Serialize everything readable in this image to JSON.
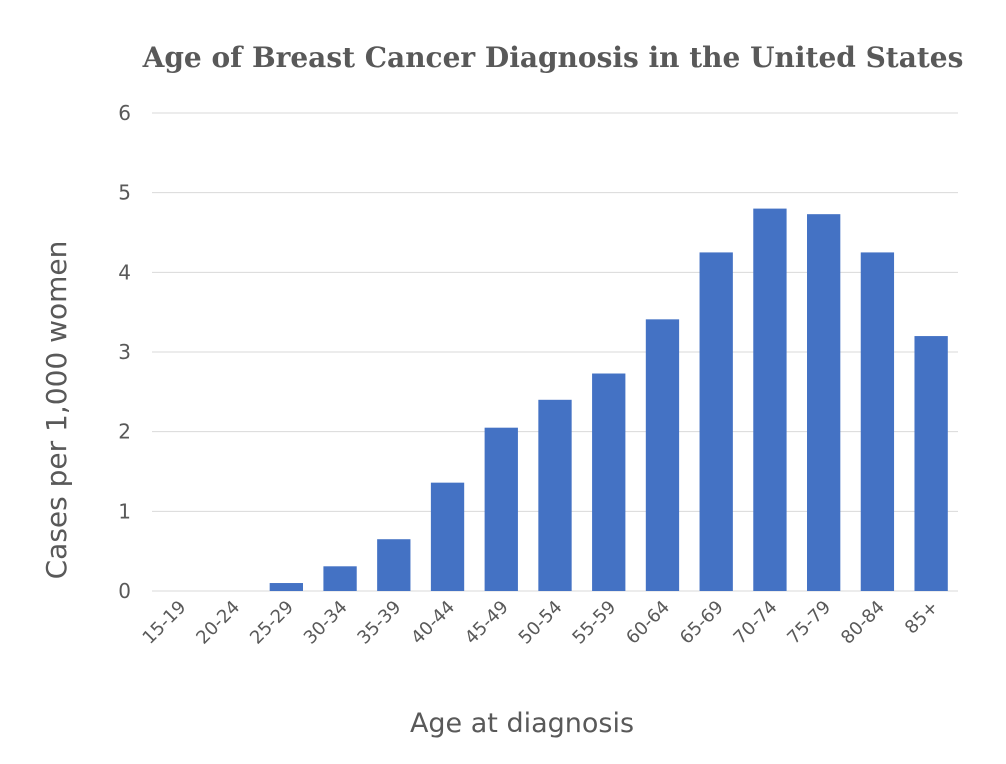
{
  "chart_data": {
    "type": "bar",
    "title": "Age of Breast Cancer Diagnosis in the United States",
    "xlabel": "Age at diagnosis",
    "ylabel": "Cases per 1,000 women",
    "categories": [
      "15-19",
      "20-24",
      "25-29",
      "30-34",
      "35-39",
      "40-44",
      "45-49",
      "50-54",
      "55-59",
      "60-64",
      "65-69",
      "70-74",
      "75-79",
      "80-84",
      "85+"
    ],
    "values": [
      0,
      0,
      0.1,
      0.31,
      0.65,
      1.36,
      2.05,
      2.4,
      2.73,
      3.41,
      4.25,
      4.8,
      4.73,
      4.25,
      3.2
    ],
    "ylim": [
      0,
      6
    ],
    "yticks": [
      "0",
      "1",
      "2",
      "3",
      "4",
      "5",
      "6"
    ],
    "grid": true,
    "legend": "none",
    "colors": {
      "bar": "#4472c4",
      "grid": "#d9d9d9",
      "text": "#595959"
    }
  }
}
